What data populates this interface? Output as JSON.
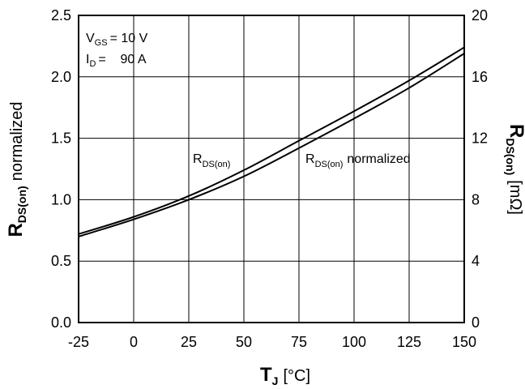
{
  "chart_data": {
    "type": "line",
    "x_axis": {
      "label_main": "T",
      "label_sub": "J",
      "label_unit": "[°C]",
      "range": [
        -25,
        150
      ],
      "ticks": [
        -25,
        0,
        25,
        50,
        75,
        100,
        125,
        150
      ],
      "tick_labels": [
        "-25",
        "0",
        "25",
        "50",
        "75",
        "100",
        "125",
        "150"
      ]
    },
    "y_left": {
      "label_main": "R",
      "label_sub": "DS(on)",
      "label_suffix": "normalized",
      "range": [
        0,
        2.5
      ],
      "ticks": [
        0,
        0.5,
        1.0,
        1.5,
        2.0,
        2.5
      ],
      "tick_labels": [
        "0.0",
        "0.5",
        "1.0",
        "1.5",
        "2.0",
        "2.5"
      ]
    },
    "y_right": {
      "label_main": "R",
      "label_sub": "DS(on)",
      "label_unit": "[mΩ]",
      "range": [
        0,
        20
      ],
      "ticks": [
        0,
        4,
        8,
        12,
        16,
        20
      ],
      "tick_labels": [
        "0",
        "4",
        "8",
        "12",
        "16",
        "20"
      ]
    },
    "grid": true,
    "conditions": {
      "vgs_main": "V",
      "vgs_sub": "GS",
      "vgs_value": "= 10 V",
      "id_main": "I",
      "id_sub": "D",
      "id_value": "=    90 A"
    },
    "series": [
      {
        "name": "R_DS(on) normalized",
        "label_main": "R",
        "label_sub": "DS(on)",
        "label_suffix": "normalized",
        "axis": "left",
        "x": [
          -25,
          0,
          25,
          50,
          75,
          100,
          125,
          150
        ],
        "y": [
          0.7,
          0.84,
          1.0,
          1.19,
          1.42,
          1.66,
          1.91,
          2.19
        ]
      },
      {
        "name": "R_DS(on)",
        "label_main": "R",
        "label_sub": "DS(on)",
        "axis": "right",
        "x": [
          -25,
          0,
          25,
          50,
          75,
          100,
          125,
          150
        ],
        "y": [
          5.76,
          6.88,
          8.24,
          9.92,
          11.84,
          13.76,
          15.76,
          17.92
        ]
      }
    ]
  }
}
